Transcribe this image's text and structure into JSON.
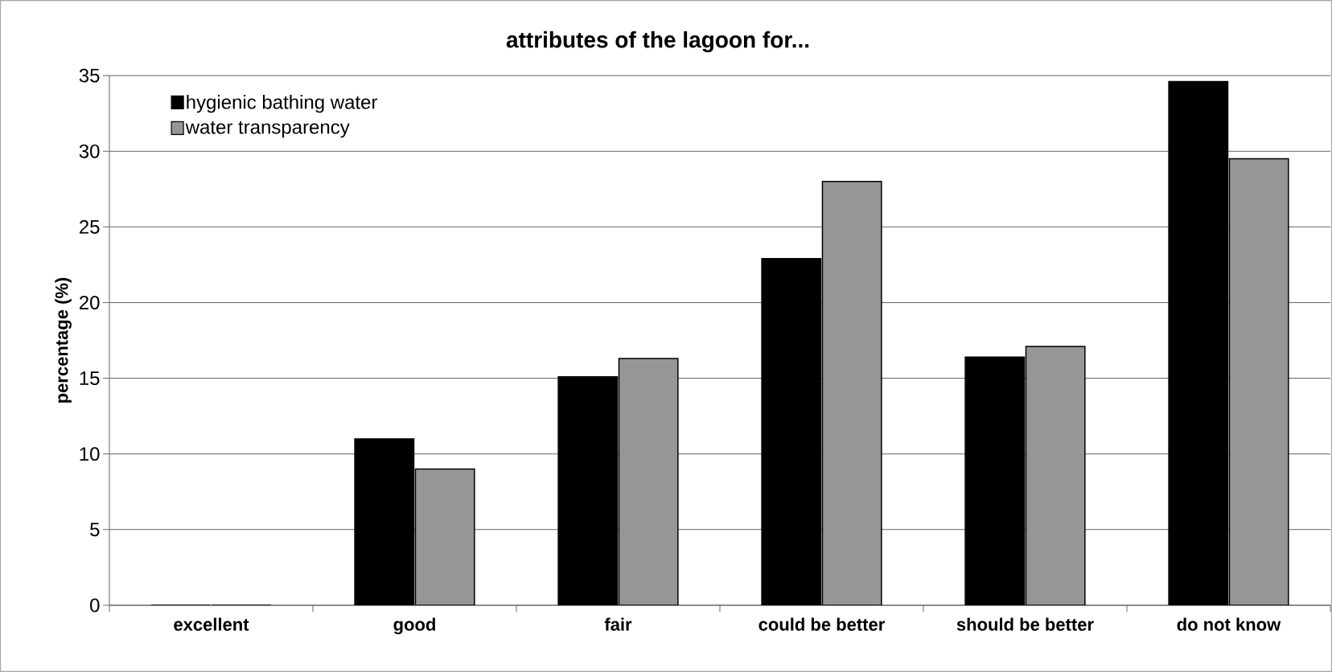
{
  "chart_data": {
    "type": "bar",
    "title": "attributes of the lagoon for...",
    "ylabel": "percentage (%)",
    "categories": [
      "excellent",
      "good",
      "fair",
      "could be better",
      "should be better",
      "do not know"
    ],
    "series": [
      {
        "name": "hygienic bathing water",
        "color": "#000000",
        "values": [
          0,
          11,
          15.1,
          22.9,
          16.4,
          34.6
        ]
      },
      {
        "name": "water transparency",
        "color": "#969696",
        "values": [
          0,
          9,
          16.3,
          28,
          17.1,
          29.5
        ]
      }
    ],
    "ylim": [
      0,
      35
    ],
    "yticks": [
      0,
      5,
      10,
      15,
      20,
      25,
      30,
      35
    ],
    "grid": "y",
    "legend": "top left"
  }
}
